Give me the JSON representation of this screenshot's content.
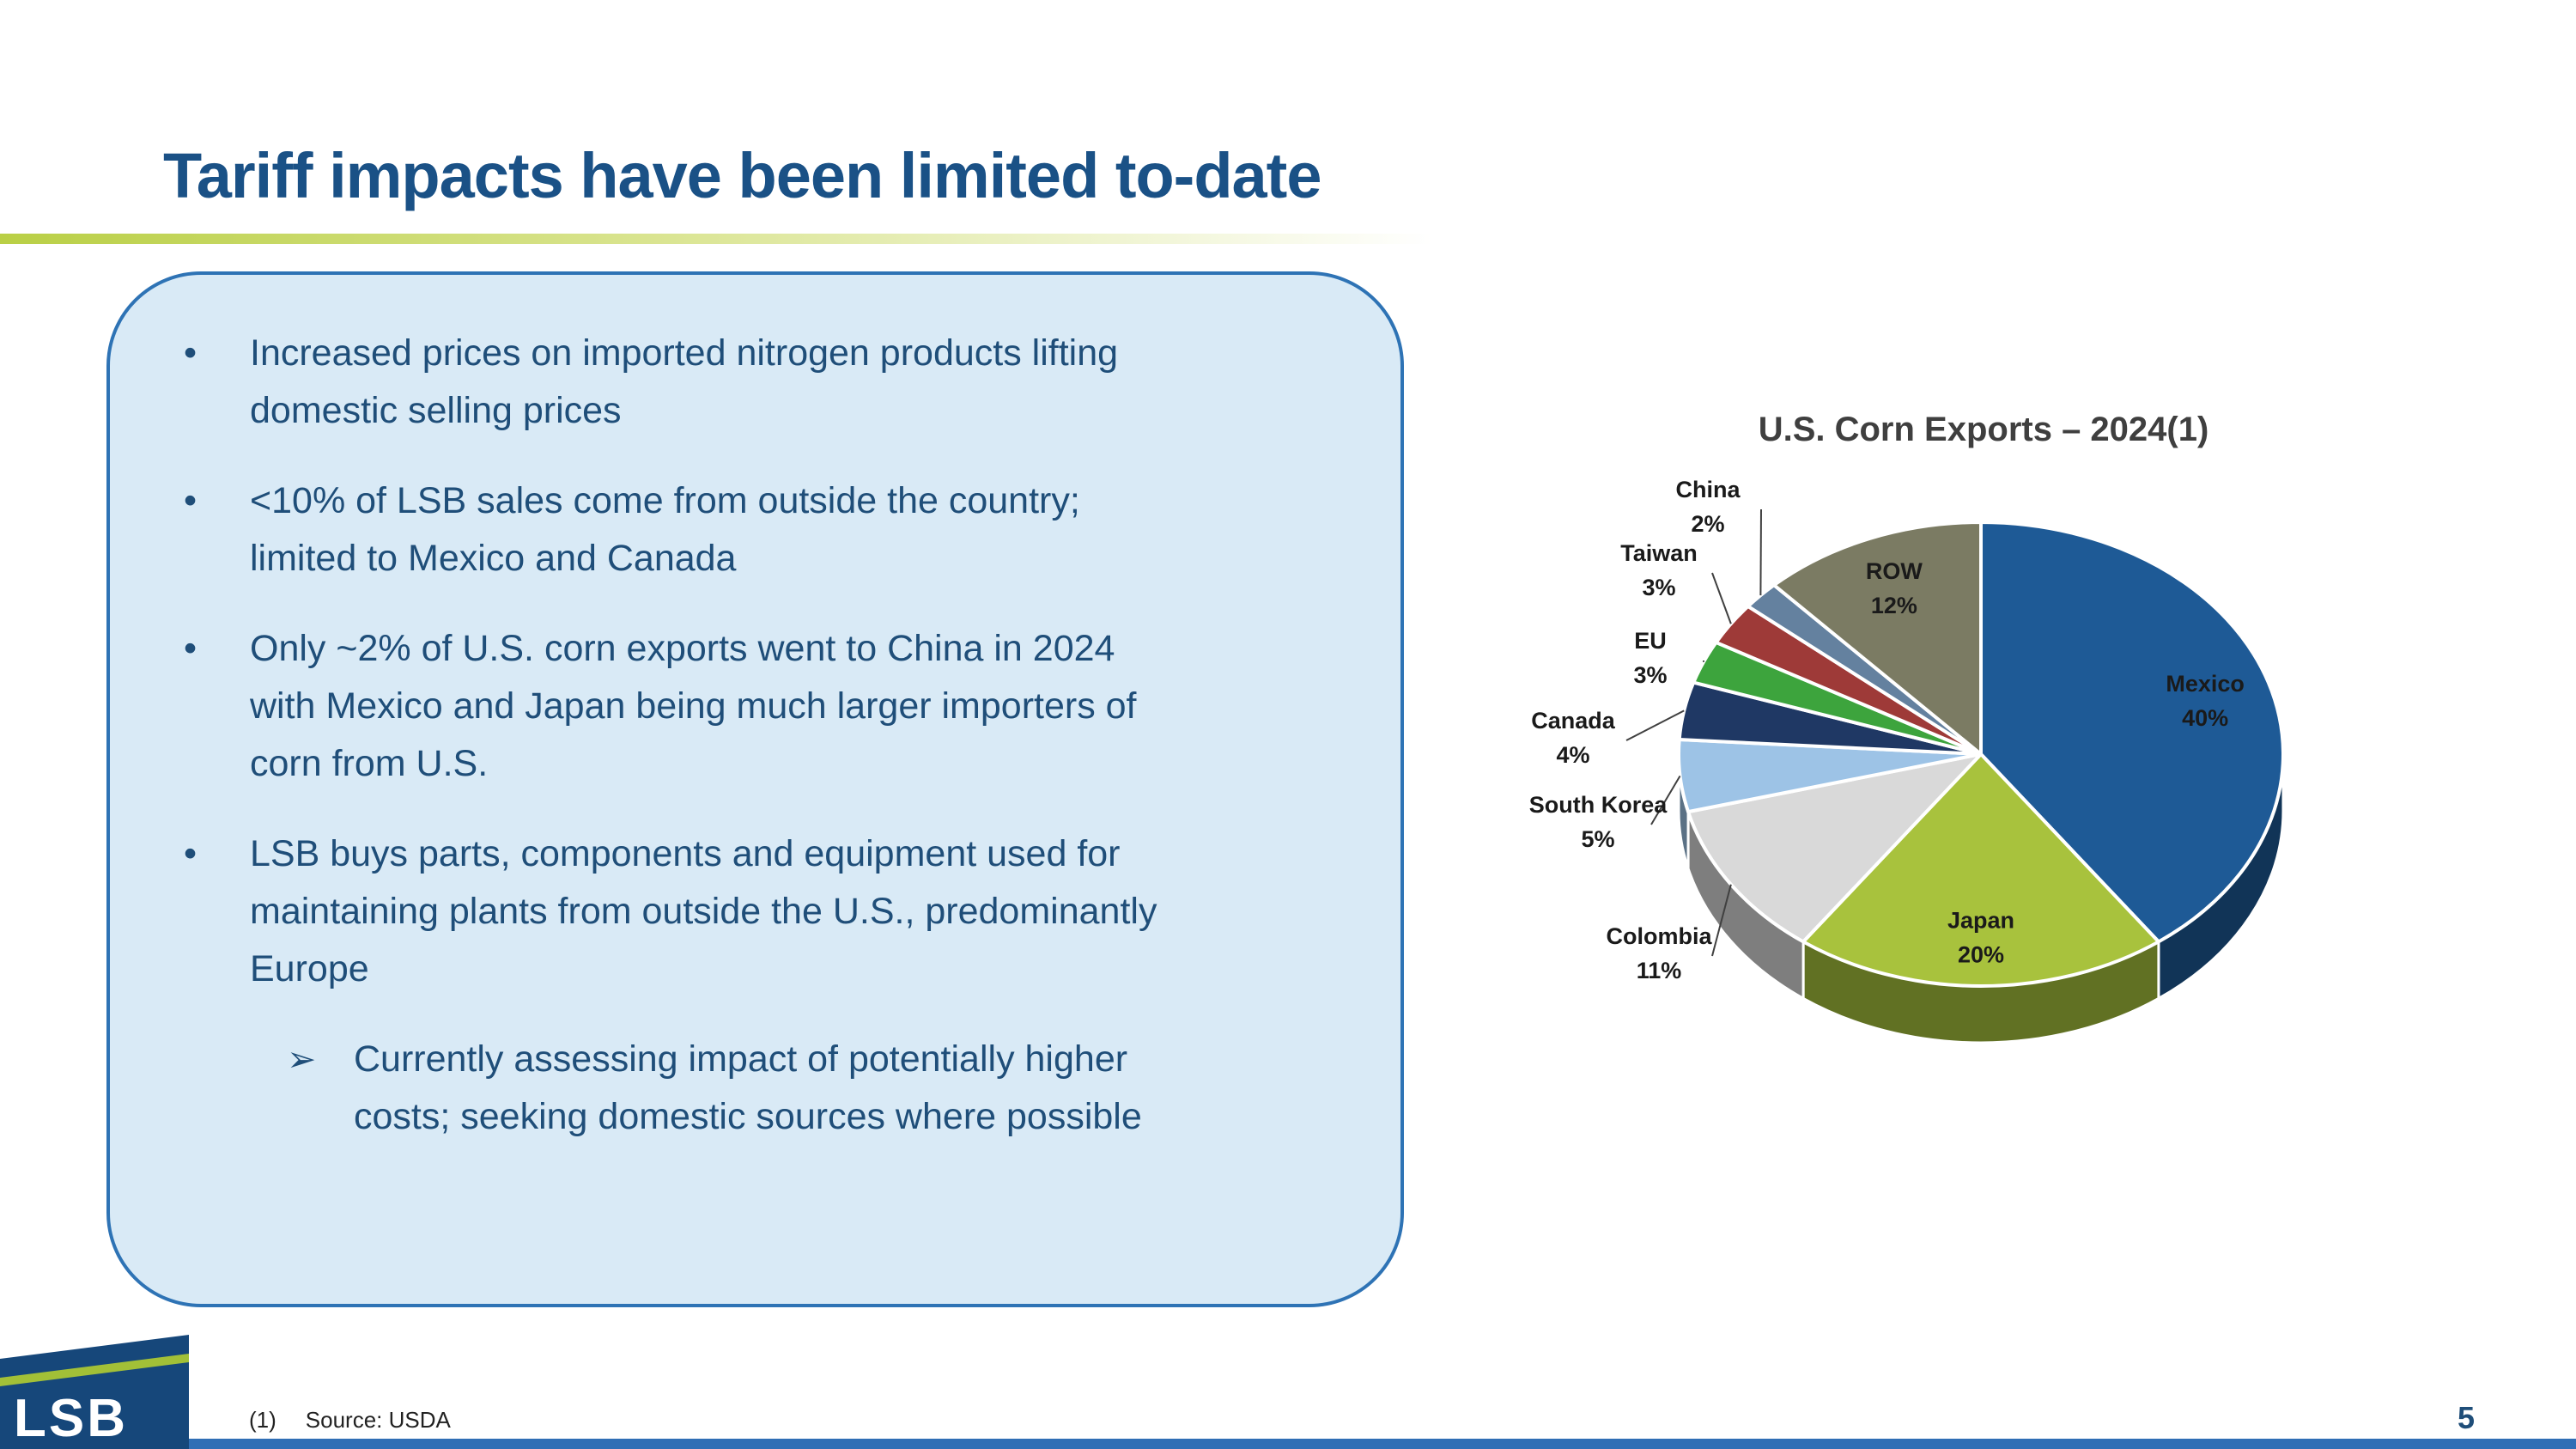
{
  "slide": {
    "title": "Tariff impacts have been limited to-date",
    "page_number": "5",
    "footnote_marker": "(1)",
    "footnote_text": "Source: USDA",
    "logo_text": "LSB"
  },
  "bullets": {
    "items": [
      {
        "text": "Increased prices on imported nitrogen products lifting domestic selling prices"
      },
      {
        "text": "<10% of LSB sales come from outside the country; limited to Mexico and Canada"
      },
      {
        "text": "Only ~2% of U.S. corn exports went to China in 2024 with Mexico and Japan being much larger importers of corn from U.S."
      },
      {
        "text": "LSB buys parts, components and equipment used for maintaining plants from outside the U.S., predominantly Europe"
      }
    ],
    "sub_marker": "➢",
    "marker": "•",
    "sub_bullet": "Currently assessing impact of potentially higher costs; seeking domestic sources where possible"
  },
  "chart_data": {
    "type": "pie",
    "title": "U.S. Corn Exports – 2024(1)",
    "unit": "%",
    "style": "3d-pie, data labels with leader lines, no legend",
    "slices": [
      {
        "name": "Mexico",
        "pct": 40,
        "color": "#1e5a96",
        "label": "inside"
      },
      {
        "name": "Japan",
        "pct": 20,
        "color": "#a8c23d",
        "label": "inside"
      },
      {
        "name": "Colombia",
        "pct": 11,
        "color": "#d9d9d9",
        "label": "outside"
      },
      {
        "name": "South Korea",
        "pct": 5,
        "color": "#9dc3e6",
        "label": "outside"
      },
      {
        "name": "Canada",
        "pct": 4,
        "color": "#1f3864",
        "label": "outside"
      },
      {
        "name": "EU",
        "pct": 3,
        "color": "#3da43d",
        "label": "outside"
      },
      {
        "name": "Taiwan",
        "pct": 3,
        "color": "#9e3a38",
        "label": "outside"
      },
      {
        "name": "China",
        "pct": 2,
        "color": "#64819f",
        "label": "outside"
      },
      {
        "name": "ROW",
        "pct": 12,
        "color": "#7b7b63",
        "label": "inside"
      }
    ]
  },
  "colors": {
    "title_blue": "#1a5186",
    "bullet_text": "#1f4e79",
    "box_fill": "#d9eaf6",
    "box_border": "#2e73b5",
    "bottom_bar": "#2f6eb5",
    "logo_blue": "#16477a",
    "logo_green": "#a2c037",
    "underline_green": "#b9cf45"
  }
}
